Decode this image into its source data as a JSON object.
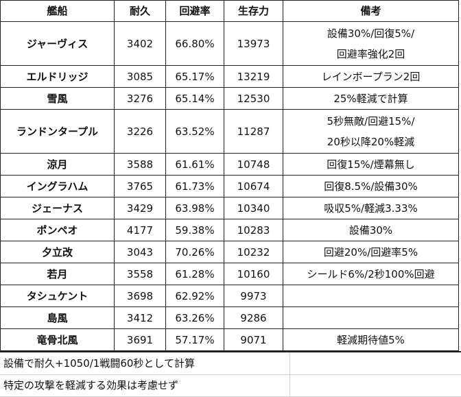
{
  "headers": [
    "艦船",
    "耐久",
    "回避率",
    "生存力",
    "備考"
  ],
  "rows": [
    {
      "name": "ジャーヴィス",
      "hp": "3402",
      "evade": "66.80%",
      "survival": "13973",
      "notes": [
        "設備30%/回復5%/",
        "回避率強化2回"
      ]
    },
    {
      "name": "エルドリッジ",
      "hp": "3085",
      "evade": "65.17%",
      "survival": "13219",
      "notes": [
        "レインボープラン2回"
      ]
    },
    {
      "name": "雪風",
      "hp": "3276",
      "evade": "65.14%",
      "survival": "12530",
      "notes": [
        "25%軽減で計算"
      ]
    },
    {
      "name": "ランドンタープル",
      "hp": "3226",
      "evade": "63.52%",
      "survival": "11287",
      "notes": [
        "5秒無敵/回避15%/",
        "20秒以降20%軽減"
      ]
    },
    {
      "name": "涼月",
      "hp": "3588",
      "evade": "61.61%",
      "survival": "10748",
      "notes": [
        "回復15%/煙幕無し"
      ]
    },
    {
      "name": "イングラハム",
      "hp": "3765",
      "evade": "61.73%",
      "survival": "10674",
      "notes": [
        "回復8.5%/設備30%"
      ]
    },
    {
      "name": "ジェーナス",
      "hp": "3429",
      "evade": "63.98%",
      "survival": "10340",
      "notes": [
        "吸収5%/軽減3.33%"
      ]
    },
    {
      "name": "ポンペオ",
      "hp": "4177",
      "evade": "59.38%",
      "survival": "10283",
      "notes": [
        "設備30%"
      ]
    },
    {
      "name": "夕立改",
      "hp": "3043",
      "evade": "70.26%",
      "survival": "10232",
      "notes": [
        "回避20%/回避率5%"
      ]
    },
    {
      "name": "若月",
      "hp": "3558",
      "evade": "61.28%",
      "survival": "10160",
      "notes": [
        "シールド6%/2秒100%回避"
      ]
    },
    {
      "name": "タシュケント",
      "hp": "3698",
      "evade": "62.92%",
      "survival": "9973",
      "notes": []
    },
    {
      "name": "島風",
      "hp": "3412",
      "evade": "63.26%",
      "survival": "9286",
      "notes": []
    },
    {
      "name": "竜骨北風",
      "hp": "3691",
      "evade": "57.17%",
      "survival": "9071",
      "notes": [
        "軽減期待値5%"
      ]
    }
  ],
  "footnotes": [
    "設備で耐久+1050/1戦闘60秒として計算",
    "特定の攻撃を軽減する効果は考慮せず"
  ]
}
